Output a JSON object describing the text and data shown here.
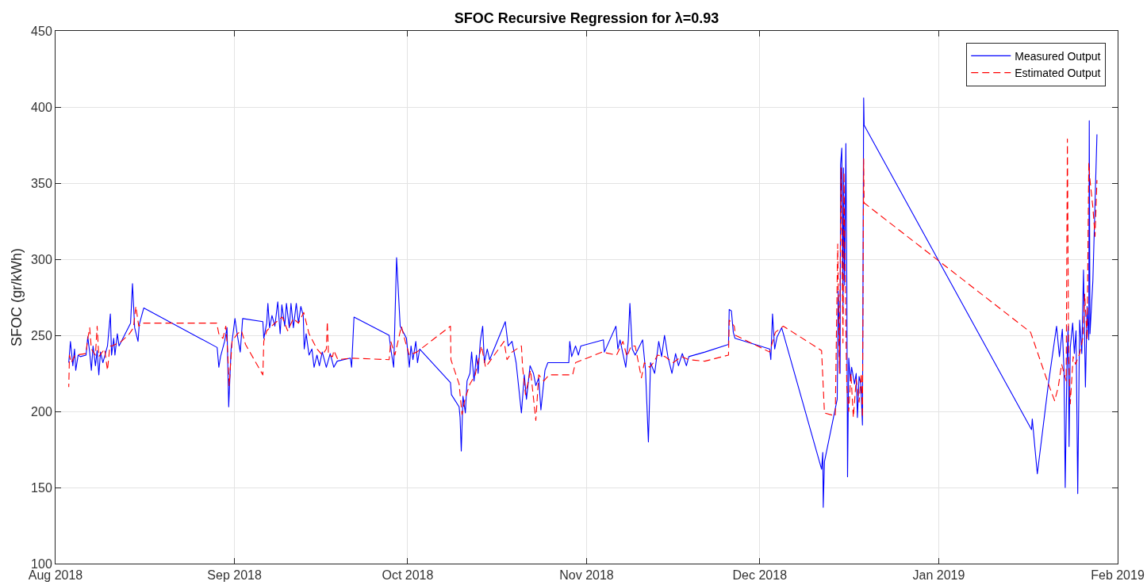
{
  "chart_data": {
    "type": "line",
    "title": "SFOC Recursive Regression for λ=0.93",
    "ylabel": "SFOC (gr/kWh)",
    "xlim": [
      "2018-08-01",
      "2019-02-01"
    ],
    "xticks": [
      {
        "value": "2018-08-01",
        "label": "Aug 2018"
      },
      {
        "value": "2018-09-01",
        "label": "Sep 2018"
      },
      {
        "value": "2018-10-01",
        "label": "Oct 2018"
      },
      {
        "value": "2018-11-01",
        "label": "Nov 2018"
      },
      {
        "value": "2018-12-01",
        "label": "Dec 2018"
      },
      {
        "value": "2019-01-01",
        "label": "Jan 2019"
      },
      {
        "value": "2019-02-01",
        "label": "Feb 2019"
      }
    ],
    "ylim": [
      100,
      450
    ],
    "yticks": [
      100,
      150,
      200,
      250,
      300,
      350,
      400,
      450
    ],
    "grid": true,
    "legend": "top right",
    "series": [
      {
        "name": "Measured Output",
        "color": "#0000ff",
        "line_style": "solid",
        "x": [
          "2018-08-03T07:00",
          "2018-08-03T14:00",
          "2018-08-04T00:00",
          "2018-08-04T07:00",
          "2018-08-04T12:00",
          "2018-08-04T22:00",
          "2018-08-05T07:00",
          "2018-08-06T07:00",
          "2018-08-06T14:00",
          "2018-08-06T22:00",
          "2018-08-07T05:00",
          "2018-08-07T12:00",
          "2018-08-07T22:00",
          "2018-08-08T05:00",
          "2018-08-08T12:00",
          "2018-08-08T19:00",
          "2018-08-09T05:00",
          "2018-08-10T00:00",
          "2018-08-10T12:00",
          "2018-08-10T17:00",
          "2018-08-11T02:00",
          "2018-08-11T07:00",
          "2018-08-11T17:00",
          "2018-08-12T00:00",
          "2018-08-14T00:00",
          "2018-08-14T08:00",
          "2018-08-14T17:00",
          "2018-08-15T07:00",
          "2018-08-15T12:00",
          "2018-08-16T07:00",
          "2018-08-29T00:00",
          "2018-08-29T07:00",
          "2018-08-29T14:00",
          "2018-08-30T07:00",
          "2018-08-30T17:00",
          "2018-08-31T00:00",
          "2018-08-31T10:00",
          "2018-09-01T02:00",
          "2018-09-01T12:00",
          "2018-09-02T00:00",
          "2018-09-02T10:00",
          "2018-09-05T22:00",
          "2018-09-06T02:00",
          "2018-09-06T14:00",
          "2018-09-06T19:00",
          "2018-09-07T02:00",
          "2018-09-07T12:00",
          "2018-09-08T00:00",
          "2018-09-08T12:00",
          "2018-09-08T22:00",
          "2018-09-09T05:00",
          "2018-09-09T17:00",
          "2018-09-10T00:00",
          "2018-09-10T12:00",
          "2018-09-10T19:00",
          "2018-09-11T05:00",
          "2018-09-11T17:00",
          "2018-09-12T02:00",
          "2018-09-12T12:00",
          "2018-09-12T22:00",
          "2018-09-13T02:00",
          "2018-09-13T10:00",
          "2018-09-13T22:00",
          "2018-09-14T10:00",
          "2018-09-14T19:00",
          "2018-09-15T07:00",
          "2018-09-15T17:00",
          "2018-09-16T05:00",
          "2018-09-16T22:00",
          "2018-09-17T14:00",
          "2018-09-18T05:00",
          "2018-09-18T19:00",
          "2018-09-21T02:00",
          "2018-09-21T07:00",
          "2018-09-21T17:00",
          "2018-09-27T19:00",
          "2018-09-28T02:00",
          "2018-09-28T14:00",
          "2018-09-29T02:00",
          "2018-09-29T17:00",
          "2018-09-30T19:00",
          "2018-10-01T07:00",
          "2018-10-01T14:00",
          "2018-10-01T22:00",
          "2018-10-02T10:00",
          "2018-10-02T17:00",
          "2018-10-03T02:00",
          "2018-10-08T10:00",
          "2018-10-08T14:00",
          "2018-10-09T22:00",
          "2018-10-10T02:00",
          "2018-10-10T07:00",
          "2018-10-10T14:00",
          "2018-10-11T00:00",
          "2018-10-11T07:00",
          "2018-10-11T19:00",
          "2018-10-12T02:00",
          "2018-10-12T12:00",
          "2018-10-12T22:00",
          "2018-10-13T05:00",
          "2018-10-13T14:00",
          "2018-10-14T00:00",
          "2018-10-14T07:00",
          "2018-10-14T19:00",
          "2018-10-15T05:00",
          "2018-10-17T22:00",
          "2018-10-18T10:00",
          "2018-10-19T02:00",
          "2018-10-19T19:00",
          "2018-10-20T17:00",
          "2018-10-21T05:00",
          "2018-10-21T14:00",
          "2018-10-22T05:00",
          "2018-10-22T19:00",
          "2018-10-23T05:00",
          "2018-10-23T17:00",
          "2018-10-24T02:00",
          "2018-10-24T19:00",
          "2018-10-25T07:00",
          "2018-10-25T22:00",
          "2018-10-28T22:00",
          "2018-10-29T02:00",
          "2018-10-29T10:00",
          "2018-10-30T02:00",
          "2018-10-30T14:00",
          "2018-10-31T00:00",
          "2018-11-03T22:00",
          "2018-11-04T02:00",
          "2018-11-06T02:00",
          "2018-11-06T10:00",
          "2018-11-06T19:00",
          "2018-11-07T19:00",
          "2018-11-08T05:00",
          "2018-11-08T12:00",
          "2018-11-08T22:00",
          "2018-11-09T10:00",
          "2018-11-10T17:00",
          "2018-11-11T05:00",
          "2018-11-11T17:00",
          "2018-11-12T02:00",
          "2018-11-12T19:00",
          "2018-11-13T12:00",
          "2018-11-14T00:00",
          "2018-11-14T12:00",
          "2018-11-15T02:00",
          "2018-11-15T19:00",
          "2018-11-16T10:00",
          "2018-11-16T22:00",
          "2018-11-17T14:00",
          "2018-11-18T07:00",
          "2018-11-18T17:00",
          "2018-11-21T12:00",
          "2018-11-25T14:00",
          "2018-11-25T17:00",
          "2018-11-26T02:00",
          "2018-11-26T10:00",
          "2018-11-26T17:00",
          "2018-12-02T17:00",
          "2018-12-02T22:00",
          "2018-12-03T05:00",
          "2018-12-03T14:00",
          "2018-12-04T00:00",
          "2018-12-04T19:00",
          "2018-12-11T17:00",
          "2018-12-11T22:00",
          "2018-12-12T00:00",
          "2018-12-12T05:00",
          "2018-12-14T10:00",
          "2018-12-14T14:00",
          "2018-12-14T22:00",
          "2018-12-15T00:00",
          "2018-12-15T05:00",
          "2018-12-15T10:00",
          "2018-12-15T12:00",
          "2018-12-15T17:00",
          "2018-12-15T22:00",
          "2018-12-16T02:00",
          "2018-12-16T05:00",
          "2018-12-16T10:00",
          "2018-12-16T17:00",
          "2018-12-16T22:00",
          "2018-12-17T10:00",
          "2018-12-17T17:00",
          "2018-12-17T22:00",
          "2018-12-18T05:00",
          "2018-12-18T12:00",
          "2018-12-18T19:00",
          "2018-12-19T00:00",
          "2018-12-19T02:00",
          "2019-01-17T02:00",
          "2019-01-17T05:00",
          "2019-01-18T02:00",
          "2019-01-20T00:00",
          "2019-01-21T10:00",
          "2019-01-21T22:00",
          "2019-01-22T10:00",
          "2019-01-22T17:00",
          "2019-01-22T22:00",
          "2019-01-23T05:00",
          "2019-01-23T10:00",
          "2019-01-23T14:00",
          "2019-01-23T19:00",
          "2019-01-24T05:00",
          "2019-01-24T12:00",
          "2019-01-24T19:00",
          "2019-01-25T02:00",
          "2019-01-25T10:00",
          "2019-01-25T19:00",
          "2019-01-26T02:00",
          "2019-01-26T10:00",
          "2019-01-26T17:00",
          "2019-01-27T00:00",
          "2019-01-27T02:00",
          "2019-01-27T05:00",
          "2019-01-27T17:00",
          "2019-01-28T10:00"
        ],
        "values": [
          232,
          246,
          230,
          241,
          227,
          237,
          236,
          237,
          249,
          239,
          227,
          243,
          230,
          240,
          224,
          239,
          232,
          243,
          264,
          237,
          248,
          237,
          251,
          243,
          258,
          284,
          255,
          246,
          257,
          268,
          242,
          229,
          236,
          246,
          255,
          203,
          241,
          261,
          250,
          239,
          261,
          259,
          248,
          258,
          271,
          255,
          263,
          256,
          272,
          251,
          270,
          256,
          271,
          255,
          271,
          255,
          271,
          258,
          269,
          263,
          241,
          251,
          237,
          241,
          229,
          237,
          230,
          239,
          229,
          238,
          229,
          233,
          235,
          229,
          262,
          250,
          241,
          229,
          301,
          256,
          248,
          229,
          243,
          234,
          246,
          232,
          241,
          219,
          211,
          203,
          196,
          174,
          210,
          199,
          220,
          225,
          239,
          220,
          237,
          225,
          246,
          256,
          232,
          241,
          234,
          259,
          243,
          246,
          232,
          199,
          224,
          208,
          230,
          225,
          217,
          222,
          201,
          227,
          232,
          232,
          232,
          246,
          236,
          243,
          237,
          243,
          247,
          239,
          256,
          241,
          247,
          229,
          246,
          271,
          241,
          237,
          247,
          227,
          180,
          232,
          225,
          246,
          236,
          250,
          236,
          225,
          238,
          230,
          238,
          230,
          236,
          239,
          244,
          267,
          266,
          252,
          248,
          241,
          234,
          264,
          241,
          249,
          255,
          162,
          173,
          137,
          167,
          208,
          279,
          225,
          362,
          373,
          264,
          360,
          283,
          376,
          283,
          157,
          235,
          220,
          229,
          218,
          225,
          196,
          223,
          218,
          191,
          406,
          388,
          188,
          195,
          159,
          218,
          256,
          236,
          254,
          227,
          150,
          229,
          256,
          177,
          242,
          258,
          238,
          253,
          146,
          260,
          238,
          293,
          216,
          269,
          247,
          391,
          251,
          286,
          382
        ]
      },
      {
        "name": "Estimated Output",
        "color": "#ff0000",
        "line_style": "dashed",
        "x": [
          "2018-08-03T07:00",
          "2018-08-03T10:00",
          "2018-08-03T17:00",
          "2018-08-04T10:00",
          "2018-08-06T07:00",
          "2018-08-06T12:00",
          "2018-08-06T22:00",
          "2018-08-07T05:00",
          "2018-08-07T22:00",
          "2018-08-08T05:00",
          "2018-08-08T12:00",
          "2018-08-09T12:00",
          "2018-08-10T00:00",
          "2018-08-10T10:00",
          "2018-08-10T19:00",
          "2018-08-12T10:00",
          "2018-08-13T19:00",
          "2018-08-14T12:00",
          "2018-08-14T22:00",
          "2018-08-15T10:00",
          "2018-08-16T02:00",
          "2018-08-28T22:00",
          "2018-08-29T07:00",
          "2018-08-30T00:00",
          "2018-08-30T12:00",
          "2018-08-30T19:00",
          "2018-08-31T02:00",
          "2018-08-31T14:00",
          "2018-09-01T12:00",
          "2018-09-02T05:00",
          "2018-09-02T22:00",
          "2018-09-05T22:00",
          "2018-09-06T02:00",
          "2018-09-06T14:00",
          "2018-09-08T00:00",
          "2018-09-09T07:00",
          "2018-09-10T05:00",
          "2018-09-11T05:00",
          "2018-09-12T02:00",
          "2018-09-13T00:00",
          "2018-09-13T22:00",
          "2018-09-15T07:00",
          "2018-09-16T05:00",
          "2018-09-16T22:00",
          "2018-09-17T02:00",
          "2018-09-17T07:00",
          "2018-09-18T00:00",
          "2018-09-18T05:00",
          "2018-09-18T22:00",
          "2018-09-21T05:00",
          "2018-09-27T19:00",
          "2018-09-28T02:00",
          "2018-09-28T19:00",
          "2018-09-29T22:00",
          "2018-09-30T14:00",
          "2018-10-01T07:00",
          "2018-10-02T14:00",
          "2018-10-08T10:00",
          "2018-10-08T12:00",
          "2018-10-09T22:00",
          "2018-10-10T10:00",
          "2018-10-10T22:00",
          "2018-10-11T19:00",
          "2018-10-12T17:00",
          "2018-10-13T19:00",
          "2018-10-14T12:00",
          "2018-10-17T17:00",
          "2018-10-18T05:00",
          "2018-10-19T02:00",
          "2018-10-20T17:00",
          "2018-10-20T22:00",
          "2018-10-21T10:00",
          "2018-10-22T07:00",
          "2018-10-23T05:00",
          "2018-10-23T17:00",
          "2018-10-24T14:00",
          "2018-10-25T12:00",
          "2018-10-29T14:00",
          "2018-10-30T02:00",
          "2018-11-03T17:00",
          "2018-11-06T05:00",
          "2018-11-07T07:00",
          "2018-11-08T00:00",
          "2018-11-08T17:00",
          "2018-11-09T10:00",
          "2018-11-10T12:00",
          "2018-11-11T00:00",
          "2018-11-11T22:00",
          "2018-11-12T14:00",
          "2018-11-13T07:00",
          "2018-11-14T14:00",
          "2018-11-16T00:00",
          "2018-11-17T10:00",
          "2018-11-18T17:00",
          "2018-11-21T12:00",
          "2018-11-25T14:00",
          "2018-11-25T17:00",
          "2018-11-26T14:00",
          "2018-11-26T19:00",
          "2018-12-02T17:00",
          "2018-12-03T17:00",
          "2018-12-05T02:00",
          "2018-12-11T17:00",
          "2018-12-12T05:00",
          "2018-12-14T02:00",
          "2018-12-14T12:00",
          "2018-12-14T19:00",
          "2018-12-15T02:00",
          "2018-12-15T10:00",
          "2018-12-15T14:00",
          "2018-12-15T22:00",
          "2018-12-16T02:00",
          "2018-12-16T10:00",
          "2018-12-16T19:00",
          "2018-12-17T05:00",
          "2018-12-17T17:00",
          "2018-12-18T05:00",
          "2018-12-18T14:00",
          "2018-12-18T19:00",
          "2018-12-19T00:00",
          "2018-12-19T02:00",
          "2019-01-16T22:00",
          "2019-01-20T00:00",
          "2019-01-21T02:00",
          "2019-01-21T17:00",
          "2019-01-22T07:00",
          "2019-01-23T02:00",
          "2019-01-23T07:00",
          "2019-01-23T12:00",
          "2019-01-23T19:00",
          "2019-01-24T07:00",
          "2019-01-24T17:00",
          "2019-01-25T10:00",
          "2019-01-26T00:00",
          "2019-01-26T07:00",
          "2019-01-26T17:00",
          "2019-01-27T00:00",
          "2019-01-27T05:00",
          "2019-01-27T17:00",
          "2019-01-28T02:00",
          "2019-01-28T10:00"
        ],
        "values": [
          216,
          237,
          232,
          237,
          238,
          246,
          255,
          241,
          237,
          256,
          236,
          241,
          227,
          243,
          243,
          246,
          251,
          255,
          269,
          256,
          258,
          258,
          251,
          248,
          256,
          241,
          217,
          246,
          251,
          253,
          244,
          224,
          246,
          253,
          258,
          262,
          253,
          261,
          258,
          265,
          251,
          241,
          237,
          241,
          259,
          237,
          236,
          240,
          234,
          235,
          234,
          246,
          237,
          256,
          246,
          237,
          239,
          256,
          234,
          218,
          198,
          208,
          218,
          224,
          243,
          229,
          246,
          234,
          239,
          243,
          229,
          211,
          227,
          194,
          224,
          220,
          224,
          224,
          232,
          239,
          237,
          246,
          236,
          243,
          243,
          222,
          232,
          229,
          232,
          237,
          236,
          232,
          236,
          234,
          233,
          237,
          260,
          256,
          250,
          239,
          252,
          256,
          240,
          199,
          197,
          310,
          225,
          360,
          245,
          357,
          254,
          216,
          200,
          225,
          196,
          221,
          206,
          225,
          196,
          366,
          337,
          252,
          218,
          207,
          216,
          231,
          220,
          379,
          238,
          205,
          236,
          231,
          238,
          249,
          277,
          247,
          363,
          352,
          334,
          315,
          352
        ]
      }
    ]
  }
}
